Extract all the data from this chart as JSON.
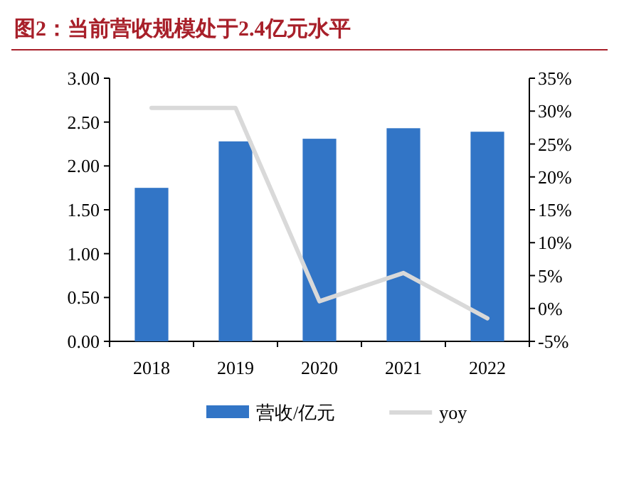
{
  "chart_data": {
    "type": "bar",
    "title": "图2：当前营收规模处于2.4亿元水平",
    "categories": [
      "2018",
      "2019",
      "2020",
      "2021",
      "2022"
    ],
    "series": [
      {
        "name": "营收/亿元",
        "color": "#3275c6",
        "values": [
          1.75,
          2.28,
          2.31,
          2.43,
          2.39
        ]
      },
      {
        "name": "yoy",
        "type": "line",
        "axis": "y2",
        "color": "#d9d9d9",
        "values": [
          30.5,
          30.5,
          1.1,
          5.4,
          -1.5
        ]
      }
    ],
    "ylim": [
      0,
      3
    ],
    "yticks": [
      {
        "value": 0,
        "label": "0.00"
      },
      {
        "value": 0.5,
        "label": "0.50"
      },
      {
        "value": 1,
        "label": "1.00"
      },
      {
        "value": 1.5,
        "label": "1.50"
      },
      {
        "value": 2,
        "label": "2.00"
      },
      {
        "value": 2.5,
        "label": "2.50"
      },
      {
        "value": 3,
        "label": "3.00"
      }
    ],
    "y2lim": [
      -5,
      35
    ],
    "y2ticks": [
      {
        "value": -5,
        "label": "-5%"
      },
      {
        "value": 0,
        "label": "0%"
      },
      {
        "value": 5,
        "label": "5%"
      },
      {
        "value": 10,
        "label": "10%"
      },
      {
        "value": 15,
        "label": "15%"
      },
      {
        "value": 20,
        "label": "20%"
      },
      {
        "value": 25,
        "label": "25%"
      },
      {
        "value": 30,
        "label": "30%"
      },
      {
        "value": 35,
        "label": "35%"
      }
    ],
    "grid": false,
    "legend": "bottom"
  }
}
